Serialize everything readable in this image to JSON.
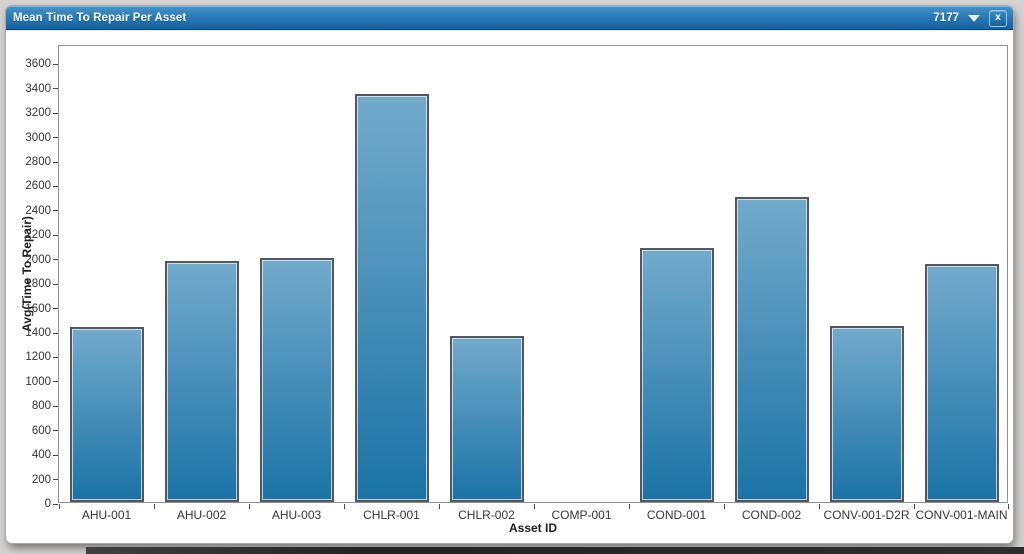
{
  "window": {
    "title": "Mean Time To Repair Per Asset",
    "id_label": "7177",
    "close_label": "x"
  },
  "colors": {
    "titlebar_top": "#4494cc",
    "titlebar_bottom": "#135f9e",
    "bar_top": "#72aacb",
    "bar_bottom": "#1b73a6",
    "bar_border": "#56575a"
  },
  "chart_data": {
    "type": "bar",
    "title": "Mean Time To Repair Per Asset",
    "categories": [
      "AHU-001",
      "AHU-002",
      "AHU-003",
      "CHLR-001",
      "CHLR-002",
      "COMP-001",
      "COND-001",
      "COND-002",
      "CONV-001-D2R",
      "CONV-001-MAIN"
    ],
    "values": [
      1430,
      1970,
      2000,
      3340,
      1360,
      0,
      2080,
      2500,
      1440,
      1950
    ],
    "xlabel": "Asset ID",
    "ylabel": "Avg(Time To Repair)",
    "ylim": [
      0,
      3750
    ],
    "yticks": [
      0,
      200,
      400,
      600,
      800,
      1000,
      1200,
      1400,
      1600,
      1800,
      2000,
      2200,
      2400,
      2600,
      2800,
      3000,
      3200,
      3400,
      3600
    ],
    "grid": false,
    "legend": "none"
  }
}
